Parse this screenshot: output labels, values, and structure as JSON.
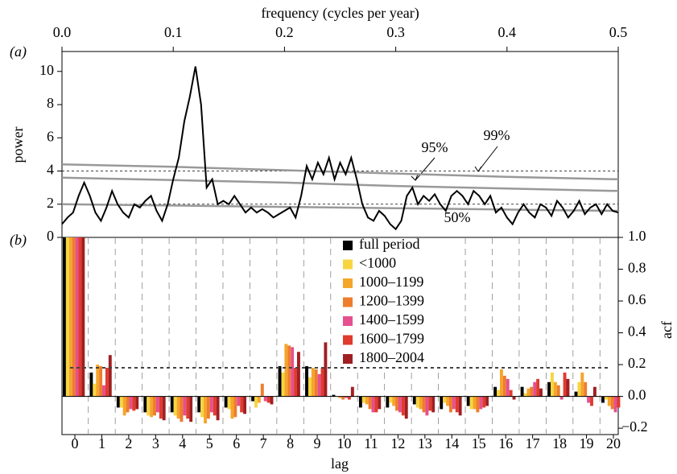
{
  "chart_data": [
    {
      "type": "line",
      "panel_label": "(a)",
      "x_label": "frequency (cycles per year)",
      "y_label": "power",
      "xlim": [
        0,
        0.5
      ],
      "xticks": [
        {
          "value": 0,
          "label": "0.0"
        },
        0.1,
        0.2,
        0.3,
        0.4,
        0.5
      ],
      "ylim": [
        0,
        11.2
      ],
      "yticks": [
        0,
        2,
        4,
        6,
        8,
        10
      ],
      "hlines": [
        2,
        4
      ],
      "series": [
        {
          "color": "#000000",
          "x": [
            0,
            0.005,
            0.01,
            0.015,
            0.02,
            0.025,
            0.03,
            0.035,
            0.04,
            0.045,
            0.05,
            0.055,
            0.06,
            0.065,
            0.07,
            0.075,
            0.08,
            0.085,
            0.09,
            0.095,
            0.1,
            0.105,
            0.11,
            0.115,
            0.12,
            0.125,
            0.13,
            0.135,
            0.14,
            0.145,
            0.15,
            0.155,
            0.16,
            0.165,
            0.17,
            0.175,
            0.18,
            0.185,
            0.19,
            0.195,
            0.2,
            0.205,
            0.21,
            0.215,
            0.22,
            0.225,
            0.23,
            0.235,
            0.24,
            0.245,
            0.25,
            0.255,
            0.26,
            0.265,
            0.27,
            0.275,
            0.28,
            0.285,
            0.29,
            0.295,
            0.3,
            0.305,
            0.31,
            0.315,
            0.32,
            0.325,
            0.33,
            0.335,
            0.34,
            0.345,
            0.35,
            0.355,
            0.36,
            0.365,
            0.37,
            0.375,
            0.38,
            0.385,
            0.39,
            0.395,
            0.4,
            0.405,
            0.41,
            0.415,
            0.42,
            0.425,
            0.43,
            0.435,
            0.44,
            0.445,
            0.45,
            0.455,
            0.46,
            0.465,
            0.47,
            0.475,
            0.48,
            0.485,
            0.49,
            0.495,
            0.5
          ],
          "values": [
            0.8,
            1.2,
            1.5,
            2.5,
            3.3,
            2.5,
            1.5,
            1.0,
            1.8,
            2.8,
            2.0,
            1.5,
            1.2,
            2.0,
            1.8,
            2.2,
            2.5,
            1.6,
            1.0,
            2.0,
            3.5,
            4.8,
            7.0,
            8.5,
            10.3,
            8.0,
            3.0,
            3.5,
            2.0,
            2.2,
            2.0,
            2.5,
            2.0,
            1.5,
            1.8,
            1.5,
            1.7,
            1.5,
            1.2,
            1.4,
            1.6,
            1.8,
            1.2,
            2.5,
            4.3,
            3.5,
            4.5,
            3.8,
            4.8,
            3.5,
            4.5,
            3.8,
            4.8,
            3.5,
            2.0,
            1.2,
            1.0,
            1.6,
            1.3,
            0.8,
            0.5,
            1.0,
            2.5,
            3.0,
            2.0,
            2.5,
            2.2,
            2.6,
            2.0,
            1.6,
            2.5,
            2.8,
            2.5,
            2.0,
            2.8,
            2.5,
            2.0,
            2.5,
            1.5,
            1.8,
            1.2,
            0.8,
            1.5,
            2.0,
            1.5,
            1.2,
            2.0,
            1.8,
            1.3,
            2.2,
            1.8,
            1.2,
            1.6,
            2.2,
            1.4,
            1.8,
            2.0,
            1.4,
            2.0,
            1.6,
            1.5
          ]
        },
        {
          "name": "50%",
          "color": "#999999",
          "x": [
            0,
            0.1,
            0.2,
            0.3,
            0.4,
            0.5
          ],
          "values": [
            2.0,
            1.92,
            1.84,
            1.76,
            1.68,
            1.6
          ]
        },
        {
          "name": "95%",
          "color": "#999999",
          "x": [
            0,
            0.1,
            0.2,
            0.3,
            0.4,
            0.5
          ],
          "values": [
            3.6,
            3.45,
            3.3,
            3.1,
            2.95,
            2.8
          ]
        },
        {
          "name": "99%",
          "color": "#999999",
          "x": [
            0,
            0.1,
            0.2,
            0.3,
            0.4,
            0.5
          ],
          "values": [
            4.4,
            4.25,
            4.05,
            3.85,
            3.65,
            3.5
          ]
        }
      ]
    },
    {
      "type": "bar",
      "panel_label": "(b)",
      "x_label": "lag",
      "y_label": "acf",
      "categories": [
        "0",
        "1",
        "2",
        "3",
        "4",
        "5",
        "6",
        "7",
        "8",
        "9",
        "10",
        "11",
        "12",
        "13",
        "14",
        "15",
        "16",
        "17",
        "18",
        "19",
        "20"
      ],
      "ylim": [
        -0.24,
        1.0
      ],
      "yticks": [
        {
          "value": 1,
          "label": "1.0"
        },
        0.8,
        0.6,
        0.4,
        0.2,
        {
          "value": 0,
          "label": "0.0"
        },
        {
          "value": -0.2,
          "label": "−0.2"
        }
      ],
      "hlines": [
        0.18
      ],
      "series": [
        {
          "name": "full period",
          "color": "#000000",
          "values": [
            1,
            0.15,
            -0.07,
            -0.1,
            -0.1,
            -0.1,
            -0.07,
            -0.03,
            0.19,
            0.19,
            0.01,
            -0.07,
            -0.07,
            -0.05,
            -0.08,
            -0.06,
            0.06,
            0.06,
            0.09,
            0.03,
            -0.04
          ]
        },
        {
          "name": "<1000",
          "color": "#f7d540",
          "values": [
            1,
            0.08,
            -0.07,
            -0.12,
            -0.12,
            -0.13,
            -0.08,
            -0.07,
            0.15,
            0.12,
            0.0,
            -0.04,
            -0.04,
            -0.07,
            -0.04,
            -0.08,
            0.04,
            0.02,
            0.15,
            0.09,
            -0.02
          ]
        },
        {
          "name": "1000–1199",
          "color": "#f5a52a",
          "values": [
            1,
            0.2,
            -0.12,
            -0.13,
            -0.14,
            -0.17,
            -0.14,
            -0.04,
            0.33,
            0.18,
            -0.01,
            -0.05,
            -0.06,
            -0.08,
            -0.06,
            -0.08,
            0.17,
            0.05,
            0.09,
            0.15,
            -0.06
          ]
        },
        {
          "name": "1200–1399",
          "color": "#ee7d2c",
          "values": [
            1,
            0.19,
            -0.1,
            -0.12,
            -0.16,
            -0.14,
            -0.13,
            0.08,
            0.32,
            0.17,
            -0.02,
            -0.08,
            -0.09,
            -0.1,
            -0.1,
            -0.1,
            0.13,
            0.06,
            0.07,
            0.09,
            -0.08
          ]
        },
        {
          "name": "1400–1599",
          "color": "#e6508f",
          "values": [
            1,
            0.07,
            -0.08,
            -0.1,
            -0.12,
            -0.1,
            -0.06,
            -0.03,
            0.31,
            0.14,
            -0.01,
            -0.1,
            -0.1,
            -0.12,
            -0.08,
            -0.08,
            0.11,
            0.09,
            -0.02,
            -0.04,
            -0.1
          ]
        },
        {
          "name": "1600–1799",
          "color": "#e03b2e",
          "values": [
            1,
            0.18,
            -0.09,
            -0.14,
            -0.14,
            -0.12,
            -0.1,
            -0.04,
            0.18,
            0.18,
            -0.02,
            -0.1,
            -0.12,
            -0.09,
            -0.1,
            -0.07,
            0.04,
            0.11,
            0.15,
            -0.06,
            -0.07
          ]
        },
        {
          "name": "1800–2004",
          "color": "#a01f22",
          "values": [
            1,
            0.26,
            -0.08,
            -0.15,
            -0.16,
            -0.15,
            -0.11,
            -0.05,
            0.28,
            0.34,
            0.06,
            -0.08,
            -0.14,
            -0.1,
            -0.12,
            -0.06,
            -0.02,
            0.05,
            0.11,
            0.06,
            0.0
          ]
        }
      ]
    }
  ]
}
